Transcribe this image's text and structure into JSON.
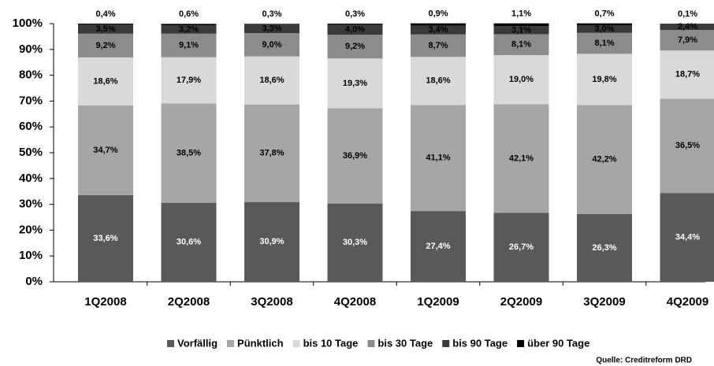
{
  "chart_data": {
    "type": "stacked_bar",
    "categories": [
      "1Q2008",
      "2Q2008",
      "3Q2008",
      "4Q2008",
      "1Q2009",
      "2Q2009",
      "3Q2009",
      "4Q2009"
    ],
    "series": [
      {
        "name": "Vorfällig",
        "color": "#595959",
        "values": [
          33.6,
          30.6,
          30.9,
          30.3,
          27.4,
          26.7,
          26.3,
          34.4
        ],
        "value_labels": [
          "33,6%",
          "30,6%",
          "30,9%",
          "30,3%",
          "27,4%",
          "26,7%",
          "26,3%",
          "34,4%"
        ]
      },
      {
        "name": "Pünktlich",
        "color": "#a6a6a6",
        "values": [
          34.7,
          38.5,
          37.8,
          36.9,
          41.1,
          42.1,
          42.2,
          36.5
        ],
        "value_labels": [
          "34,7%",
          "38,5%",
          "37,8%",
          "36,9%",
          "41,1%",
          "42,1%",
          "42,2%",
          "36,5%"
        ]
      },
      {
        "name": "bis 10 Tage",
        "color": "#d9d9d9",
        "values": [
          18.6,
          17.9,
          18.6,
          19.3,
          18.6,
          19.0,
          19.8,
          18.7
        ],
        "value_labels": [
          "18,6%",
          "17,9%",
          "18,6%",
          "19,3%",
          "18,6%",
          "19,0%",
          "19,8%",
          "18,7%"
        ]
      },
      {
        "name": "bis 30 Tage",
        "color": "#8c8c8c",
        "values": [
          9.2,
          9.1,
          9.0,
          9.2,
          8.7,
          8.1,
          8.1,
          7.9
        ],
        "value_labels": [
          "9,2%",
          "9,1%",
          "9,0%",
          "9,2%",
          "8,7%",
          "8,1%",
          "8,1%",
          "7,9%"
        ]
      },
      {
        "name": "bis 90 Tage",
        "color": "#3a3a3a",
        "values": [
          3.5,
          3.2,
          3.3,
          4.0,
          3.4,
          3.1,
          3.0,
          2.4
        ],
        "value_labels": [
          "3,5%",
          "3,2%",
          "3,3%",
          "4,0%",
          "3,4%",
          "3,1%",
          "3,0%",
          "2,4%"
        ]
      },
      {
        "name": "über 90 Tage",
        "color": "#000000",
        "values": [
          0.4,
          0.6,
          0.3,
          0.3,
          0.9,
          1.1,
          0.7,
          0.1
        ],
        "value_labels": [
          "0,4%",
          "0,6%",
          "0,3%",
          "0,3%",
          "0,9%",
          "1,1%",
          "0,7%",
          "0,1%"
        ]
      }
    ],
    "ylim": [
      0,
      100
    ],
    "yticks": [
      {
        "value": 0,
        "label": "0%"
      },
      {
        "value": 10,
        "label": "10%"
      },
      {
        "value": 20,
        "label": "20%"
      },
      {
        "value": 30,
        "label": "30%"
      },
      {
        "value": 40,
        "label": "40%"
      },
      {
        "value": 50,
        "label": "50%"
      },
      {
        "value": 60,
        "label": "60%"
      },
      {
        "value": 70,
        "label": "70%"
      },
      {
        "value": 80,
        "label": "80%"
      },
      {
        "value": 90,
        "label": "90%"
      },
      {
        "value": 100,
        "label": "100%"
      }
    ],
    "source": "Quelle: Creditreform DRD"
  }
}
